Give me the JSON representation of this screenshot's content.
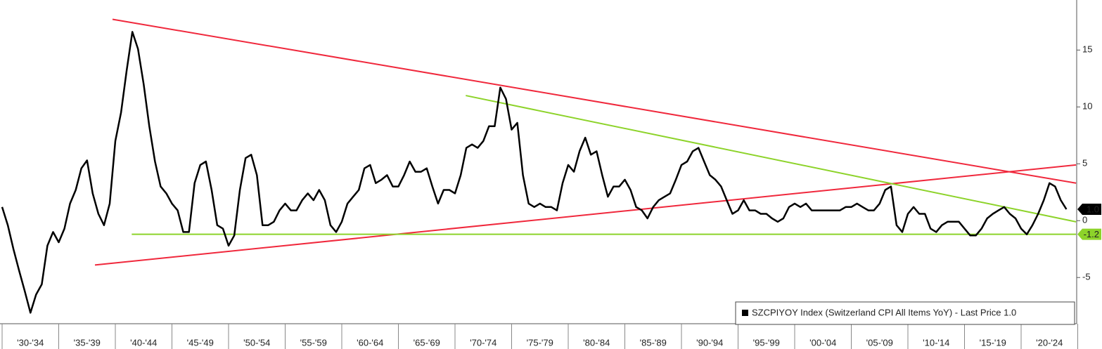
{
  "chart_data": {
    "type": "line",
    "period_labels": [
      "'30-'34",
      "'35-'39",
      "'40-'44",
      "'45-'49",
      "'50-'54",
      "'55-'59",
      "'60-'64",
      "'65-'69",
      "'70-'74",
      "'75-'79",
      "'80-'84",
      "'85-'89",
      "'90-'94",
      "'95-'99",
      "'00-'04",
      "'05-'09",
      "'10-'14",
      "'15-'19",
      "'20-'24"
    ],
    "series": [
      {
        "name": "SZCPIYOY Index (Switzerland CPI All Items YoY) - Last Price 1.0",
        "color": "#000000",
        "values": [
          1.2,
          -0.4,
          -2.5,
          -4.4,
          -6.2,
          -8.1,
          -6.5,
          -5.6,
          -2.2,
          -1.0,
          -1.9,
          -0.7,
          1.5,
          2.7,
          4.6,
          5.3,
          2.4,
          0.6,
          -0.4,
          1.5,
          7.0,
          9.5,
          13.2,
          16.6,
          15.1,
          12.0,
          8.3,
          5.2,
          3.0,
          2.4,
          1.5,
          0.9,
          -1.0,
          -1.0,
          3.3,
          4.9,
          5.2,
          2.7,
          -0.4,
          -0.7,
          -2.2,
          -1.3,
          2.7,
          5.5,
          5.8,
          4.0,
          -0.4,
          -0.4,
          -0.1,
          0.9,
          1.5,
          0.9,
          0.9,
          1.8,
          2.4,
          1.8,
          2.7,
          1.8,
          -0.4,
          -1.0,
          -0.1,
          1.5,
          2.1,
          2.7,
          4.6,
          4.9,
          3.3,
          3.6,
          4.0,
          3.0,
          3.0,
          4.0,
          5.2,
          4.3,
          4.3,
          4.6,
          3.0,
          1.5,
          2.7,
          2.7,
          2.4,
          4.0,
          6.4,
          6.7,
          6.4,
          7.0,
          8.3,
          8.3,
          11.7,
          10.7,
          8.0,
          8.6,
          4.0,
          1.5,
          1.2,
          1.5,
          1.2,
          1.2,
          0.9,
          3.3,
          4.9,
          4.3,
          6.1,
          7.3,
          5.8,
          6.1,
          4.0,
          2.1,
          3.0,
          3.0,
          3.6,
          2.7,
          1.2,
          0.9,
          0.2,
          1.2,
          1.8,
          2.1,
          2.4,
          3.6,
          4.9,
          5.2,
          6.1,
          6.4,
          5.2,
          4.0,
          3.6,
          3.0,
          1.8,
          0.6,
          0.9,
          1.8,
          0.9,
          0.9,
          0.6,
          0.6,
          0.2,
          -0.1,
          0.2,
          1.2,
          1.5,
          1.2,
          1.5,
          0.9,
          0.9,
          0.9,
          0.9,
          0.9,
          0.9,
          1.2,
          1.2,
          1.5,
          1.2,
          0.9,
          0.9,
          1.5,
          2.7,
          3.0,
          -0.4,
          -1.0,
          0.6,
          1.2,
          0.6,
          0.6,
          -0.7,
          -1.0,
          -0.4,
          -0.1,
          -0.1,
          -0.1,
          -0.7,
          -1.3,
          -1.3,
          -0.7,
          0.2,
          0.6,
          0.9,
          1.2,
          0.6,
          0.2,
          -0.7,
          -1.2,
          -0.4,
          0.6,
          1.8,
          3.3,
          3.0,
          1.8,
          1.0
        ]
      }
    ],
    "trend_lines": [
      {
        "color": "#f0283c",
        "x": [
          19.5,
          189.7
        ],
        "values": [
          17.7,
          3.3
        ]
      },
      {
        "color": "#f0283c",
        "x": [
          16.4,
          189.7
        ],
        "values": [
          -3.9,
          4.9
        ]
      },
      {
        "color": "#8dd32a",
        "x": [
          81.9,
          189.7
        ],
        "values": [
          11.0,
          -0.1
        ]
      },
      {
        "color": "#8dd32a",
        "x": [
          22.9,
          189.7
        ],
        "values": [
          -1.2,
          -1.2
        ]
      }
    ],
    "markers": [
      {
        "value": 1.0,
        "label": "1.0",
        "color": "#000000"
      },
      {
        "value": -1.2,
        "label": "-1.2",
        "color": "#8dd32a"
      }
    ],
    "ylim": [
      -9.0,
      19.4
    ],
    "yticks": [
      -5,
      0,
      5,
      10,
      15
    ]
  }
}
